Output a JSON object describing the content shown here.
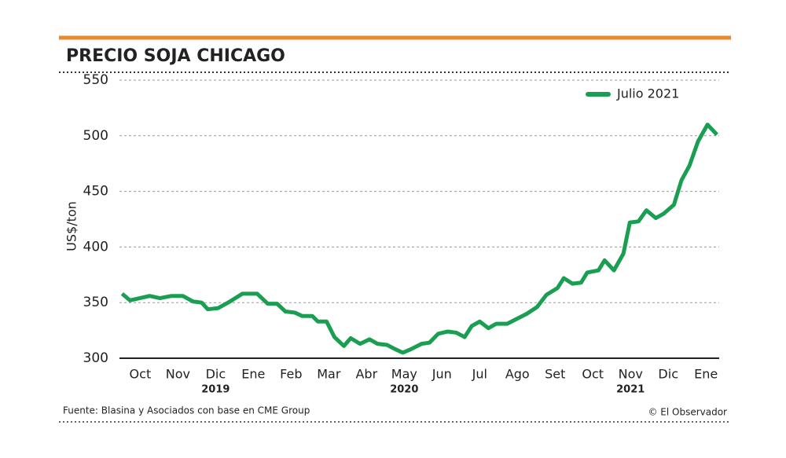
{
  "chart_data": {
    "type": "line",
    "title": "PRECIO SOJA CHICAGO",
    "y_label": "US$/ton",
    "source": "Fuente: Blasina y Asociados con base en CME Group",
    "credit": "© El Observador",
    "legend": "top-right",
    "grid": true,
    "ylim": [
      300,
      550
    ],
    "yticks": [
      300,
      350,
      400,
      450,
      500,
      550
    ],
    "xlim": [
      -0.55,
      15.35
    ],
    "xticks": [
      {
        "value": 0,
        "label": "Oct"
      },
      {
        "value": 1,
        "label": "Nov"
      },
      {
        "value": 2,
        "label": "Dic"
      },
      {
        "value": 3,
        "label": "Ene"
      },
      {
        "value": 4,
        "label": "Feb"
      },
      {
        "value": 5,
        "label": "Mar"
      },
      {
        "value": 6,
        "label": "Abr"
      },
      {
        "value": 7,
        "label": "May"
      },
      {
        "value": 8,
        "label": "Jun"
      },
      {
        "value": 9,
        "label": "Jul"
      },
      {
        "value": 10,
        "label": "Ago"
      },
      {
        "value": 11,
        "label": "Set"
      },
      {
        "value": 12,
        "label": "Oct"
      },
      {
        "value": 13,
        "label": "Nov"
      },
      {
        "value": 14,
        "label": "Dic"
      },
      {
        "value": 15,
        "label": "Ene"
      }
    ],
    "x_group_labels": [
      {
        "value": 2,
        "label": "2019"
      },
      {
        "value": 7,
        "label": "2020"
      },
      {
        "value": 13,
        "label": "2021"
      }
    ],
    "x": [
      -0.48,
      -0.27,
      0.25,
      0.52,
      0.83,
      1.13,
      1.4,
      1.63,
      1.79,
      2.06,
      2.33,
      2.71,
      3.1,
      3.38,
      3.63,
      3.85,
      4.1,
      4.29,
      4.56,
      4.71,
      4.94,
      5.15,
      5.4,
      5.58,
      5.83,
      6.08,
      6.29,
      6.54,
      6.77,
      6.96,
      7.17,
      7.46,
      7.67,
      7.9,
      8.15,
      8.38,
      8.6,
      8.79,
      9.0,
      9.23,
      9.44,
      9.73,
      10.02,
      10.25,
      10.52,
      10.77,
      11.06,
      11.23,
      11.46,
      11.69,
      11.85,
      12.15,
      12.31,
      12.56,
      12.81,
      12.98,
      13.21,
      13.42,
      13.67,
      13.88,
      14.15,
      14.35,
      14.56,
      14.79,
      15.04,
      15.29
    ],
    "series": [
      {
        "name": "Julio 2021",
        "color": "#1a9e52",
        "values": [
          358,
          352,
          356,
          354,
          356,
          356,
          351,
          350,
          344,
          345,
          350,
          358,
          358,
          349,
          349,
          342,
          341,
          338,
          338,
          333,
          333,
          319,
          311,
          318,
          313,
          317,
          313,
          312,
          308,
          305,
          308,
          313,
          314,
          322,
          324,
          323,
          319,
          329,
          333,
          327,
          331,
          331,
          336,
          340,
          346,
          357,
          363,
          372,
          367,
          368,
          377,
          379,
          388,
          379,
          394,
          422,
          423,
          433,
          426,
          430,
          438,
          460,
          473,
          495,
          510,
          501
        ]
      }
    ]
  }
}
